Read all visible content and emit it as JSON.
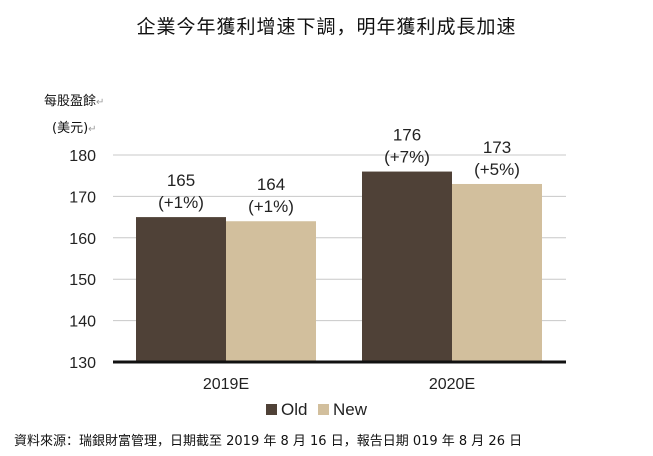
{
  "title": "企業今年獲利增速下調，明年獲利成長加速",
  "ylabel_line1": "每股盈餘",
  "ylabel_line2": "(美元)",
  "para_mark": "↵",
  "source": "資料來源：瑞銀財富管理，日期截至 2019 年 8 月 16 日，報告日期 019 年 8 月 26 日",
  "colors": {
    "old": "#4f4137",
    "new": "#d2bf9d",
    "grid": "#c8c8c8",
    "baseline": "#111111"
  },
  "chart_data": {
    "type": "bar",
    "categories": [
      "2019E",
      "2020E"
    ],
    "series": [
      {
        "name": "Old",
        "values": [
          165,
          176
        ],
        "labels": [
          "165",
          "176"
        ],
        "changes": [
          "(+1%)",
          "(+7%)"
        ]
      },
      {
        "name": "New",
        "values": [
          164,
          173
        ],
        "labels": [
          "164",
          "173"
        ],
        "changes": [
          "(+1%)",
          "(+5%)"
        ]
      }
    ],
    "ylim": [
      130,
      180
    ],
    "yticks": [
      130,
      140,
      150,
      160,
      170,
      180
    ],
    "grid": true,
    "legend": "bottom-right"
  }
}
